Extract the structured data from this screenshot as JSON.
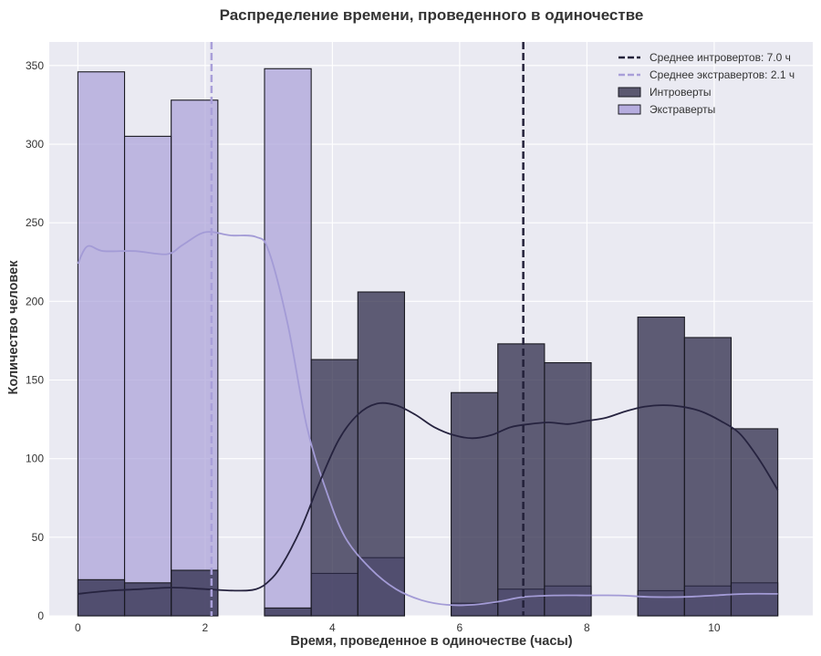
{
  "chart_data": {
    "type": "histogram",
    "title": "Распределение времени, проведенного в одиночестве",
    "xlabel": "Время, проведенное в одиночестве (часы)",
    "ylabel": "Количество человек",
    "xlim": [
      -0.45,
      11.55
    ],
    "ylim": [
      0,
      365
    ],
    "x_ticks": [
      0,
      2,
      4,
      6,
      8,
      10
    ],
    "y_ticks": [
      0,
      50,
      100,
      150,
      200,
      250,
      300,
      350
    ],
    "grid": true,
    "legend_position": "top-right",
    "bin_edges": [
      0,
      0.7333,
      1.4667,
      2.2,
      2.9333,
      3.6667,
      4.4,
      5.1333,
      5.8667,
      6.6,
      7.3333,
      8.0667,
      8.8,
      9.5333,
      10.2667,
      11
    ],
    "series": [
      {
        "name": "Экстраверты",
        "key": "extroverts",
        "color": "#a99fd9",
        "counts": [
          346,
          305,
          328,
          0,
          348,
          27,
          37,
          0,
          8,
          17,
          19,
          0,
          16,
          19,
          21
        ],
        "kde": [
          [
            0,
            224
          ],
          [
            0.15,
            235
          ],
          [
            0.4,
            232
          ],
          [
            0.9,
            232
          ],
          [
            1.4,
            230
          ],
          [
            1.65,
            236
          ],
          [
            2.0,
            244
          ],
          [
            2.4,
            242
          ],
          [
            2.8,
            241
          ],
          [
            3.0,
            232
          ],
          [
            3.3,
            185
          ],
          [
            3.6,
            120
          ],
          [
            3.9,
            80
          ],
          [
            4.2,
            50
          ],
          [
            4.6,
            30
          ],
          [
            5.0,
            17
          ],
          [
            5.4,
            10
          ],
          [
            5.8,
            7
          ],
          [
            6.2,
            7
          ],
          [
            6.6,
            9
          ],
          [
            7.0,
            12
          ],
          [
            7.5,
            13
          ],
          [
            8.0,
            13
          ],
          [
            8.5,
            13
          ],
          [
            9.0,
            12
          ],
          [
            9.5,
            12
          ],
          [
            10.0,
            13
          ],
          [
            10.5,
            14
          ],
          [
            11.0,
            14
          ]
        ]
      },
      {
        "name": "Интроверты",
        "key": "introverts",
        "color": "#2e2b4a",
        "counts": [
          23,
          21,
          29,
          0,
          5,
          163,
          206,
          0,
          142,
          173,
          161,
          0,
          190,
          177,
          119
        ],
        "kde": [
          [
            0,
            14
          ],
          [
            0.5,
            16
          ],
          [
            1.0,
            17
          ],
          [
            1.5,
            18
          ],
          [
            2.0,
            17
          ],
          [
            2.5,
            16
          ],
          [
            2.8,
            17
          ],
          [
            3.0,
            22
          ],
          [
            3.2,
            32
          ],
          [
            3.5,
            55
          ],
          [
            3.8,
            85
          ],
          [
            4.1,
            112
          ],
          [
            4.4,
            128
          ],
          [
            4.7,
            135
          ],
          [
            5.0,
            134
          ],
          [
            5.3,
            128
          ],
          [
            5.6,
            120
          ],
          [
            5.9,
            115
          ],
          [
            6.2,
            113
          ],
          [
            6.5,
            115
          ],
          [
            6.8,
            120
          ],
          [
            7.1,
            122
          ],
          [
            7.4,
            123
          ],
          [
            7.7,
            122
          ],
          [
            8.0,
            124
          ],
          [
            8.3,
            126
          ],
          [
            8.6,
            130
          ],
          [
            8.9,
            133
          ],
          [
            9.2,
            134
          ],
          [
            9.5,
            133
          ],
          [
            9.8,
            130
          ],
          [
            10.1,
            124
          ],
          [
            10.4,
            116
          ],
          [
            10.7,
            100
          ],
          [
            11.0,
            80
          ]
        ]
      }
    ],
    "mean_lines": [
      {
        "key": "introverts",
        "value": 7.0,
        "color": "#23213a"
      },
      {
        "key": "extroverts",
        "value": 2.1,
        "color": "#a99fd9"
      }
    ],
    "legend": [
      {
        "kind": "dashed-line",
        "label": "Среднее интровертов: 7.0 ч",
        "color": "#23213a"
      },
      {
        "kind": "dashed-line",
        "label": "Среднее экстравертов: 2.1 ч",
        "color": "#a99fd9"
      },
      {
        "kind": "patch",
        "label": "Интроверты",
        "color": "#5b5870"
      },
      {
        "kind": "patch",
        "label": "Экстраверты",
        "color": "#b6addf"
      }
    ]
  }
}
